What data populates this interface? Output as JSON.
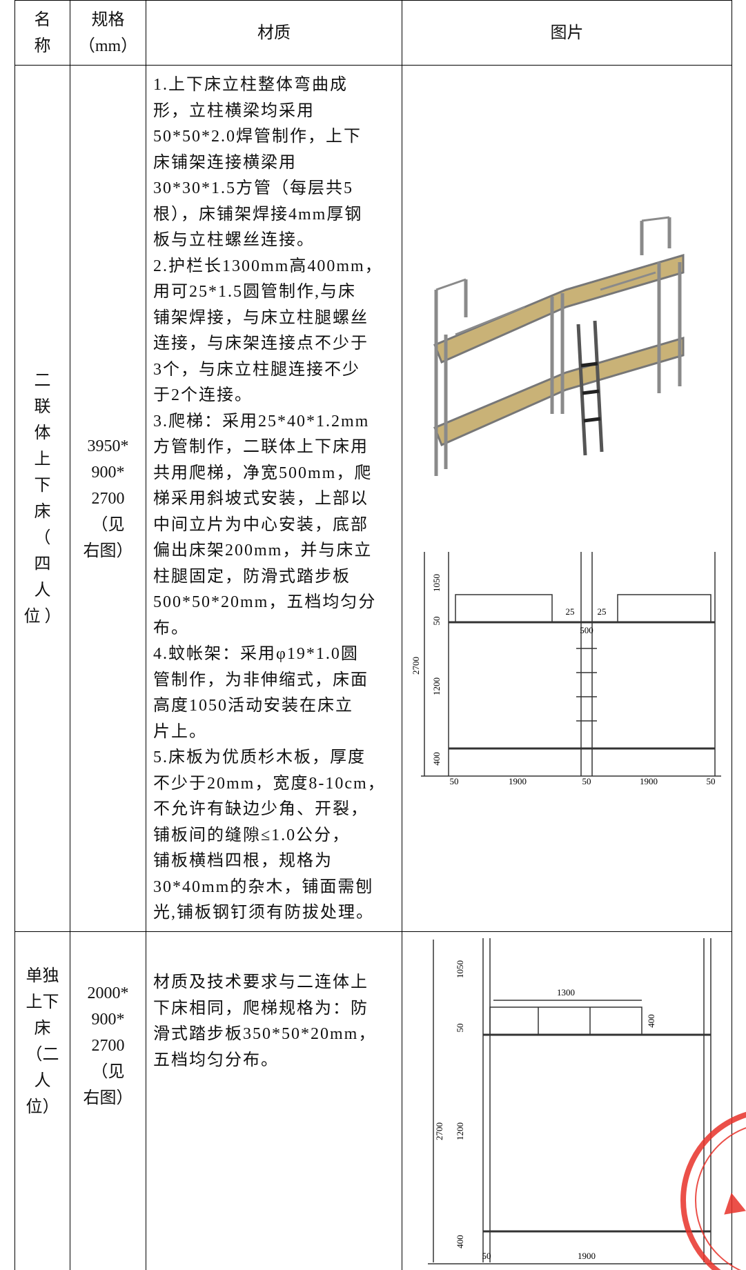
{
  "header": {
    "name": [
      "名",
      "称"
    ],
    "spec": [
      "规格",
      "（mm）"
    ],
    "material": "材质",
    "picture": "图片"
  },
  "rows": [
    {
      "name": [
        "二",
        "联",
        "体",
        "上",
        "下",
        "床",
        "（",
        "四",
        "人",
        "位 ）"
      ],
      "spec": [
        "3950*",
        "900*",
        "2700",
        "（见",
        "右图）"
      ],
      "material": [
        "1.上下床立柱整体弯曲成",
        "形，立柱横梁均采用",
        "50*50*2.0焊管制作，上下",
        "床铺架连接横梁用",
        "30*30*1.5方管（每层共5",
        "根），床铺架焊接4mm厚钢",
        "板与立柱螺丝连接。",
        "2.护栏长1300mm高400mm，",
        "用可25*1.5圆管制作,与床",
        "铺架焊接，与床立柱腿螺丝",
        "连接，与床架连接点不少于",
        "3个，与床立柱腿连接不少",
        "于2个连接。",
        "3.爬梯：采用25*40*1.2mm",
        "方管制作，二联体上下床用",
        "共用爬梯，净宽500mm，爬",
        "梯采用斜坡式安装，上部以",
        "中间立片为中心安装，底部",
        "偏出床架200mm，并与床立",
        "柱腿固定，防滑式踏步板",
        "500*50*20mm，五档均匀分",
        "布。",
        "4.蚊帐架：采用φ19*1.0圆",
        "管制作，为非伸缩式，床面",
        "高度1050活动安装在床立",
        "片上。",
        "5.床板为优质杉木板，厚度",
        "不少于20mm，宽度8-10cm，",
        "不允许有缺边少角、开裂，",
        "铺板间的缝隙≤1.0公分，",
        "铺板横档四根，规格为",
        "30*40mm的杂木，铺面需刨",
        "光,铺板钢钉须有防拔处理。"
      ],
      "dimensions": [
        "1050",
        "50",
        "2700",
        "1200",
        "400",
        "25",
        "25",
        "500",
        "50",
        "1900",
        "50",
        "1900",
        "50"
      ]
    },
    {
      "name": [
        "单独",
        "上下",
        "床",
        "（二",
        "人",
        "位）"
      ],
      "spec": [
        "2000*",
        "900*",
        "2700",
        "（见",
        "右图）"
      ],
      "material": [
        "材质及技术要求与二连体上",
        "下床相同，爬梯规格为：防",
        "滑式踏步板350*50*20mm，",
        "五档均匀分布。"
      ],
      "dimensions": [
        "1050",
        "1300",
        "400",
        "50",
        "2700",
        "1200",
        "400",
        "50",
        "1900"
      ]
    }
  ]
}
